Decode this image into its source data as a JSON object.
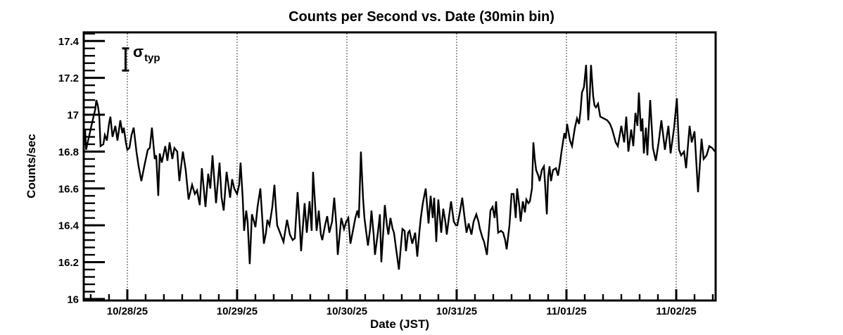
{
  "colors": {
    "foreground": "#000000",
    "background": "#ffffff"
  },
  "chart_data": {
    "type": "line",
    "title": "Counts per Second vs. Date (30min bin)",
    "xlabel": "Date (JST)",
    "ylabel": "Counts/sec",
    "legend": "none",
    "x_axis": {
      "note": "x values are days since 10/28/25 00:00 JST",
      "range": [
        -0.397,
        5.359
      ],
      "major_ticks": [
        0,
        1,
        2,
        3,
        4,
        5
      ],
      "major_tick_labels": [
        "10/28/25",
        "10/29/25",
        "10/30/25",
        "10/31/25",
        "11/01/25",
        "11/02/25"
      ],
      "minor_ticks_per_day": 6,
      "gridlines": "dotted vertical at each date tick"
    },
    "y_axis": {
      "range": [
        15.992,
        17.447
      ],
      "major_ticks": [
        16,
        16.2,
        16.4,
        16.6,
        16.8,
        17,
        17.2,
        17.4
      ],
      "major_tick_labels": [
        "16",
        "16.2",
        "16.4",
        "16.6",
        "16.8",
        "17",
        "17.2",
        "17.4"
      ],
      "minor_tick_step": 0.04
    },
    "annotation": {
      "sigma_symbol": "σ",
      "sigma_subscript": "typ",
      "error_bar": {
        "x": -0.016,
        "y_low": 17.24,
        "y_high": 17.36
      }
    },
    "series": [
      {
        "name": "counts-per-sec",
        "color": "#000000",
        "points": [
          [
            -0.397,
            16.88
          ],
          [
            -0.385,
            16.92
          ],
          [
            -0.375,
            16.81
          ],
          [
            -0.365,
            16.84
          ],
          [
            -0.346,
            16.89
          ],
          [
            -0.327,
            16.94
          ],
          [
            -0.308,
            16.99
          ],
          [
            -0.292,
            17.03
          ],
          [
            -0.282,
            17.08
          ],
          [
            -0.269,
            17.05
          ],
          [
            -0.256,
            17.0
          ],
          [
            -0.244,
            16.83
          ],
          [
            -0.218,
            16.84
          ],
          [
            -0.205,
            16.89
          ],
          [
            -0.186,
            16.86
          ],
          [
            -0.167,
            16.95
          ],
          [
            -0.154,
            16.99
          ],
          [
            -0.135,
            16.88
          ],
          [
            -0.109,
            16.94
          ],
          [
            -0.09,
            16.86
          ],
          [
            -0.064,
            16.97
          ],
          [
            -0.045,
            16.9
          ],
          [
            -0.032,
            16.93
          ],
          [
            -0.013,
            16.85
          ],
          [
            0.0,
            16.81
          ],
          [
            0.019,
            16.82
          ],
          [
            0.038,
            16.89
          ],
          [
            0.058,
            16.93
          ],
          [
            0.083,
            16.8
          ],
          [
            0.103,
            16.72
          ],
          [
            0.128,
            16.64
          ],
          [
            0.154,
            16.72
          ],
          [
            0.186,
            16.81
          ],
          [
            0.205,
            16.82
          ],
          [
            0.224,
            16.93
          ],
          [
            0.25,
            16.76
          ],
          [
            0.263,
            16.78
          ],
          [
            0.282,
            16.56
          ],
          [
            0.295,
            16.79
          ],
          [
            0.314,
            16.74
          ],
          [
            0.346,
            16.83
          ],
          [
            0.365,
            16.75
          ],
          [
            0.385,
            16.85
          ],
          [
            0.41,
            16.76
          ],
          [
            0.429,
            16.82
          ],
          [
            0.455,
            16.8
          ],
          [
            0.474,
            16.64
          ],
          [
            0.506,
            16.8
          ],
          [
            0.532,
            16.7
          ],
          [
            0.558,
            16.54
          ],
          [
            0.59,
            16.62
          ],
          [
            0.615,
            16.57
          ],
          [
            0.635,
            16.59
          ],
          [
            0.66,
            16.51
          ],
          [
            0.679,
            16.71
          ],
          [
            0.712,
            16.5
          ],
          [
            0.737,
            16.68
          ],
          [
            0.756,
            16.6
          ],
          [
            0.776,
            16.78
          ],
          [
            0.808,
            16.52
          ],
          [
            0.84,
            16.74
          ],
          [
            0.859,
            16.55
          ],
          [
            0.878,
            16.48
          ],
          [
            0.904,
            16.69
          ],
          [
            0.936,
            16.55
          ],
          [
            0.955,
            16.65
          ],
          [
            0.974,
            16.6
          ],
          [
            1.0,
            16.57
          ],
          [
            1.019,
            16.62
          ],
          [
            1.032,
            16.74
          ],
          [
            1.051,
            16.55
          ],
          [
            1.064,
            16.37
          ],
          [
            1.083,
            16.48
          ],
          [
            1.096,
            16.42
          ],
          [
            1.115,
            16.19
          ],
          [
            1.135,
            16.46
          ],
          [
            1.154,
            16.42
          ],
          [
            1.167,
            16.39
          ],
          [
            1.186,
            16.5
          ],
          [
            1.212,
            16.6
          ],
          [
            1.231,
            16.42
          ],
          [
            1.244,
            16.3
          ],
          [
            1.263,
            16.36
          ],
          [
            1.276,
            16.43
          ],
          [
            1.295,
            16.4
          ],
          [
            1.321,
            16.5
          ],
          [
            1.34,
            16.62
          ],
          [
            1.353,
            16.5
          ],
          [
            1.365,
            16.4
          ],
          [
            1.391,
            16.36
          ],
          [
            1.423,
            16.31
          ],
          [
            1.455,
            16.43
          ],
          [
            1.481,
            16.35
          ],
          [
            1.506,
            16.32
          ],
          [
            1.526,
            16.33
          ],
          [
            1.551,
            16.58
          ],
          [
            1.571,
            16.4
          ],
          [
            1.583,
            16.26
          ],
          [
            1.615,
            16.52
          ],
          [
            1.635,
            16.36
          ],
          [
            1.66,
            16.53
          ],
          [
            1.679,
            16.37
          ],
          [
            1.692,
            16.69
          ],
          [
            1.712,
            16.5
          ],
          [
            1.724,
            16.37
          ],
          [
            1.744,
            16.48
          ],
          [
            1.763,
            16.35
          ],
          [
            1.776,
            16.32
          ],
          [
            1.801,
            16.4
          ],
          [
            1.821,
            16.45
          ],
          [
            1.84,
            16.36
          ],
          [
            1.865,
            16.42
          ],
          [
            1.885,
            16.55
          ],
          [
            1.904,
            16.4
          ],
          [
            1.917,
            16.24
          ],
          [
            1.936,
            16.36
          ],
          [
            1.949,
            16.44
          ],
          [
            1.974,
            16.38
          ],
          [
            1.994,
            16.42
          ],
          [
            2.013,
            16.44
          ],
          [
            2.032,
            16.3
          ],
          [
            2.058,
            16.38
          ],
          [
            2.077,
            16.44
          ],
          [
            2.096,
            16.48
          ],
          [
            2.109,
            16.44
          ],
          [
            2.128,
            16.8
          ],
          [
            2.147,
            16.55
          ],
          [
            2.16,
            16.44
          ],
          [
            2.192,
            16.29
          ],
          [
            2.212,
            16.38
          ],
          [
            2.224,
            16.48
          ],
          [
            2.244,
            16.35
          ],
          [
            2.256,
            16.24
          ],
          [
            2.282,
            16.36
          ],
          [
            2.301,
            16.46
          ],
          [
            2.314,
            16.2
          ],
          [
            2.333,
            16.38
          ],
          [
            2.346,
            16.51
          ],
          [
            2.365,
            16.4
          ],
          [
            2.378,
            16.35
          ],
          [
            2.397,
            16.44
          ],
          [
            2.417,
            16.38
          ],
          [
            2.429,
            16.36
          ],
          [
            2.449,
            16.27
          ],
          [
            2.474,
            16.16
          ],
          [
            2.494,
            16.3
          ],
          [
            2.506,
            16.38
          ],
          [
            2.526,
            16.37
          ],
          [
            2.538,
            16.26
          ],
          [
            2.558,
            16.36
          ],
          [
            2.571,
            16.37
          ],
          [
            2.596,
            16.3
          ],
          [
            2.622,
            16.36
          ],
          [
            2.641,
            16.23
          ],
          [
            2.66,
            16.36
          ],
          [
            2.673,
            16.44
          ],
          [
            2.692,
            16.52
          ],
          [
            2.718,
            16.6
          ],
          [
            2.744,
            16.41
          ],
          [
            2.763,
            16.56
          ],
          [
            2.782,
            16.44
          ],
          [
            2.795,
            16.55
          ],
          [
            2.814,
            16.31
          ],
          [
            2.833,
            16.54
          ],
          [
            2.859,
            16.36
          ],
          [
            2.878,
            16.49
          ],
          [
            2.897,
            16.42
          ],
          [
            2.91,
            16.35
          ],
          [
            2.929,
            16.44
          ],
          [
            2.949,
            16.53
          ],
          [
            2.974,
            16.42
          ],
          [
            2.994,
            16.4
          ],
          [
            3.006,
            16.4
          ],
          [
            3.032,
            16.48
          ],
          [
            3.051,
            16.55
          ],
          [
            3.071,
            16.45
          ],
          [
            3.09,
            16.36
          ],
          [
            3.109,
            16.41
          ],
          [
            3.135,
            16.35
          ],
          [
            3.154,
            16.42
          ],
          [
            3.179,
            16.46
          ],
          [
            3.199,
            16.42
          ],
          [
            3.212,
            16.38
          ],
          [
            3.237,
            16.33
          ],
          [
            3.25,
            16.31
          ],
          [
            3.276,
            16.24
          ],
          [
            3.295,
            16.38
          ],
          [
            3.308,
            16.48
          ],
          [
            3.327,
            16.5
          ],
          [
            3.346,
            16.44
          ],
          [
            3.359,
            16.53
          ],
          [
            3.378,
            16.36
          ],
          [
            3.404,
            16.37
          ],
          [
            3.423,
            16.36
          ],
          [
            3.442,
            16.32
          ],
          [
            3.455,
            16.27
          ],
          [
            3.481,
            16.4
          ],
          [
            3.5,
            16.57
          ],
          [
            3.519,
            16.57
          ],
          [
            3.538,
            16.44
          ],
          [
            3.551,
            16.6
          ],
          [
            3.571,
            16.5
          ],
          [
            3.583,
            16.42
          ],
          [
            3.603,
            16.53
          ],
          [
            3.622,
            16.47
          ],
          [
            3.635,
            16.54
          ],
          [
            3.654,
            16.52
          ],
          [
            3.667,
            16.53
          ],
          [
            3.686,
            16.6
          ],
          [
            3.699,
            16.85
          ],
          [
            3.712,
            16.76
          ],
          [
            3.724,
            16.7
          ],
          [
            3.744,
            16.67
          ],
          [
            3.756,
            16.64
          ],
          [
            3.776,
            16.7
          ],
          [
            3.795,
            16.72
          ],
          [
            3.808,
            16.6
          ],
          [
            3.821,
            16.46
          ],
          [
            3.833,
            16.66
          ],
          [
            3.846,
            16.72
          ],
          [
            3.859,
            16.64
          ],
          [
            3.878,
            16.7
          ],
          [
            3.904,
            16.71
          ],
          [
            3.923,
            16.67
          ],
          [
            3.942,
            16.74
          ],
          [
            3.955,
            16.8
          ],
          [
            3.981,
            16.9
          ],
          [
            3.994,
            16.87
          ],
          [
            4.006,
            16.95
          ],
          [
            4.032,
            16.86
          ],
          [
            4.051,
            16.83
          ],
          [
            4.077,
            16.93
          ],
          [
            4.096,
            16.98
          ],
          [
            4.115,
            16.95
          ],
          [
            4.128,
            17.02
          ],
          [
            4.141,
            17.12
          ],
          [
            4.16,
            17.15
          ],
          [
            4.179,
            17.27
          ],
          [
            4.199,
            16.97
          ],
          [
            4.212,
            17.1
          ],
          [
            4.224,
            17.27
          ],
          [
            4.244,
            17.1
          ],
          [
            4.256,
            17.05
          ],
          [
            4.269,
            17.04
          ],
          [
            4.288,
            17.06
          ],
          [
            4.308,
            16.99
          ],
          [
            4.34,
            16.98
          ],
          [
            4.372,
            16.97
          ],
          [
            4.397,
            16.95
          ],
          [
            4.417,
            16.92
          ],
          [
            4.449,
            16.85
          ],
          [
            4.468,
            16.83
          ],
          [
            4.5,
            16.94
          ],
          [
            4.526,
            16.85
          ],
          [
            4.545,
            16.99
          ],
          [
            4.564,
            16.8
          ],
          [
            4.59,
            16.92
          ],
          [
            4.609,
            16.83
          ],
          [
            4.628,
            17.01
          ],
          [
            4.647,
            16.94
          ],
          [
            4.66,
            17.12
          ],
          [
            4.679,
            16.91
          ],
          [
            4.692,
            16.98
          ],
          [
            4.705,
            16.79
          ],
          [
            4.724,
            16.93
          ],
          [
            4.737,
            16.78
          ],
          [
            4.763,
            17.08
          ],
          [
            4.788,
            16.82
          ],
          [
            4.814,
            16.75
          ],
          [
            4.84,
            16.85
          ],
          [
            4.865,
            16.97
          ],
          [
            4.897,
            16.81
          ],
          [
            4.929,
            16.94
          ],
          [
            4.949,
            16.79
          ],
          [
            4.981,
            16.93
          ],
          [
            5.006,
            17.09
          ],
          [
            5.026,
            16.81
          ],
          [
            5.045,
            16.78
          ],
          [
            5.071,
            16.8
          ],
          [
            5.09,
            16.71
          ],
          [
            5.122,
            16.94
          ],
          [
            5.141,
            16.85
          ],
          [
            5.167,
            16.91
          ],
          [
            5.199,
            16.58
          ],
          [
            5.231,
            16.87
          ],
          [
            5.25,
            16.76
          ],
          [
            5.276,
            16.78
          ],
          [
            5.301,
            16.83
          ],
          [
            5.327,
            16.82
          ],
          [
            5.353,
            16.8
          ]
        ]
      }
    ]
  }
}
